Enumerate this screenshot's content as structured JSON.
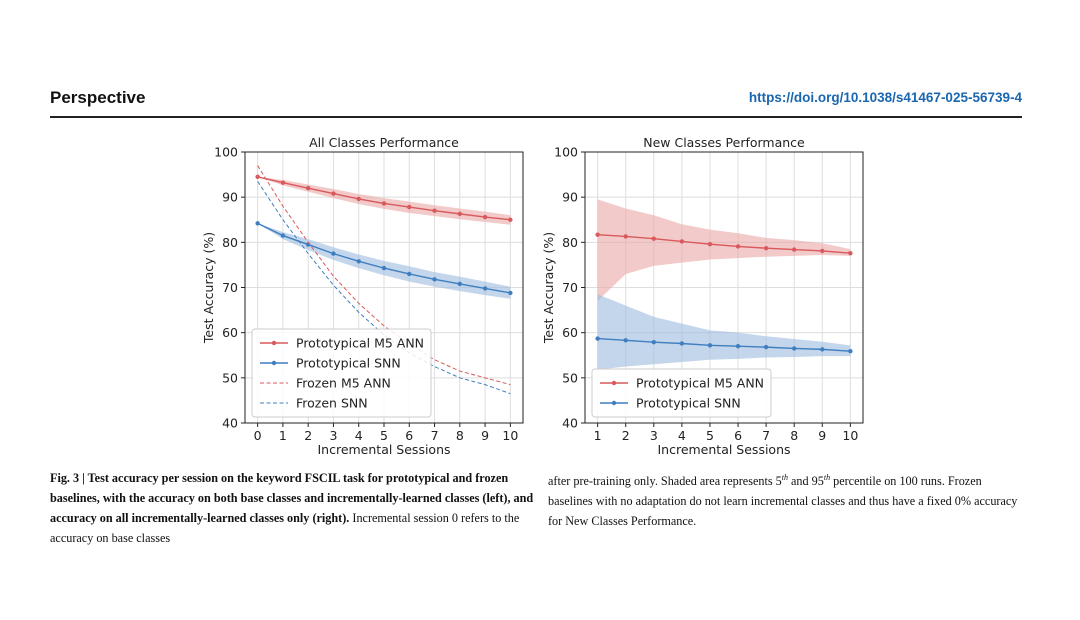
{
  "header": {
    "section": "Perspective",
    "doi": "https://doi.org/10.1038/s41467-025-56739-4"
  },
  "caption": {
    "bold": "Fig. 3 | Test accuracy per session on the keyword FSCIL task for prototypical and frozen baselines, with the accuracy on both base classes and incrementally-learned classes (left), and accuracy on all incrementally-learned classes only (right).",
    "normal": " Incremental session 0 refers to the accuracy on base classes",
    "right_a": "after pre-training only. Shaded area represents 5",
    "sup1": "th",
    "right_b": " and 95",
    "sup2": "th",
    "right_c": " percentile on 100 runs. Frozen baselines with no adaptation do not learn incremental classes and thus have a fixed 0% accuracy for New Classes Performance."
  },
  "colors": {
    "red": "#d9595c",
    "blue": "#3f7fbf",
    "red_band": "#e9a6a6",
    "blue_band": "#9dbbdd"
  },
  "chart_data": [
    {
      "type": "line",
      "title": "All Classes Performance",
      "xlabel": "Incremental Sessions",
      "ylabel": "Test Accuracy (%)",
      "x": [
        0,
        1,
        2,
        3,
        4,
        5,
        6,
        7,
        8,
        9,
        10
      ],
      "xlim": [
        -0.5,
        10.5
      ],
      "ylim": [
        40,
        100
      ],
      "yticks": [
        40,
        50,
        60,
        70,
        80,
        90,
        100
      ],
      "grid": true,
      "legend": "lower-left",
      "series": [
        {
          "name": "Prototypical M5 ANN",
          "color": "red",
          "style": "solid",
          "marker": true,
          "values": [
            94.5,
            93.2,
            92.0,
            90.8,
            89.6,
            88.6,
            87.8,
            87.0,
            86.3,
            85.6,
            85.0
          ],
          "lower": [
            94.5,
            92.6,
            91.2,
            89.8,
            88.5,
            87.4,
            86.5,
            85.8,
            85.1,
            84.5,
            83.9
          ],
          "upper": [
            94.5,
            93.8,
            92.8,
            91.8,
            90.7,
            89.8,
            89.0,
            88.2,
            87.5,
            86.8,
            86.0
          ]
        },
        {
          "name": "Prototypical SNN",
          "color": "blue",
          "style": "solid",
          "marker": true,
          "values": [
            84.2,
            81.5,
            79.5,
            77.5,
            75.8,
            74.3,
            73.0,
            71.8,
            70.8,
            69.8,
            68.8
          ],
          "lower": [
            84.2,
            80.7,
            78.3,
            76.1,
            74.3,
            72.7,
            71.3,
            70.2,
            69.2,
            68.3,
            67.5
          ],
          "upper": [
            84.2,
            82.3,
            80.7,
            78.9,
            77.3,
            75.9,
            74.7,
            73.4,
            72.4,
            71.3,
            70.2
          ]
        },
        {
          "name": "Frozen M5 ANN",
          "color": "red",
          "style": "dashed",
          "marker": false,
          "values": [
            97.0,
            88.0,
            80.0,
            72.5,
            66.5,
            61.5,
            57.5,
            54.0,
            51.5,
            50.0,
            48.5
          ]
        },
        {
          "name": "Frozen SNN",
          "color": "blue",
          "style": "dashed",
          "marker": false,
          "values": [
            93.5,
            85.0,
            77.5,
            70.5,
            64.5,
            59.5,
            55.5,
            52.5,
            50.0,
            48.5,
            46.5
          ]
        }
      ]
    },
    {
      "type": "line",
      "title": "New Classes Performance",
      "xlabel": "Incremental Sessions",
      "ylabel": "Test Accuracy (%)",
      "x": [
        1,
        2,
        3,
        4,
        5,
        6,
        7,
        8,
        9,
        10
      ],
      "xlim": [
        0.55,
        10.45
      ],
      "ylim": [
        40,
        100
      ],
      "yticks": [
        40,
        50,
        60,
        70,
        80,
        90,
        100
      ],
      "grid": true,
      "legend": "lower-left",
      "series": [
        {
          "name": "Prototypical M5 ANN",
          "color": "red",
          "style": "solid",
          "marker": true,
          "values": [
            81.7,
            81.3,
            80.8,
            80.2,
            79.6,
            79.1,
            78.7,
            78.4,
            78.1,
            77.6
          ],
          "lower": [
            67.0,
            73.0,
            74.8,
            75.5,
            76.2,
            76.5,
            76.8,
            77.0,
            77.2,
            77.0
          ],
          "upper": [
            89.5,
            87.5,
            86.0,
            84.0,
            82.8,
            82.0,
            81.0,
            80.5,
            79.8,
            78.5
          ]
        },
        {
          "name": "Prototypical SNN",
          "color": "blue",
          "style": "solid",
          "marker": true,
          "values": [
            58.7,
            58.3,
            57.9,
            57.6,
            57.2,
            57.0,
            56.8,
            56.5,
            56.3,
            55.9
          ],
          "lower": [
            51.8,
            52.5,
            53.0,
            53.5,
            54.0,
            54.2,
            54.5,
            54.6,
            54.8,
            54.8
          ],
          "upper": [
            68.5,
            66.0,
            63.5,
            62.0,
            60.5,
            60.0,
            59.2,
            58.6,
            58.0,
            57.2
          ]
        }
      ]
    }
  ]
}
